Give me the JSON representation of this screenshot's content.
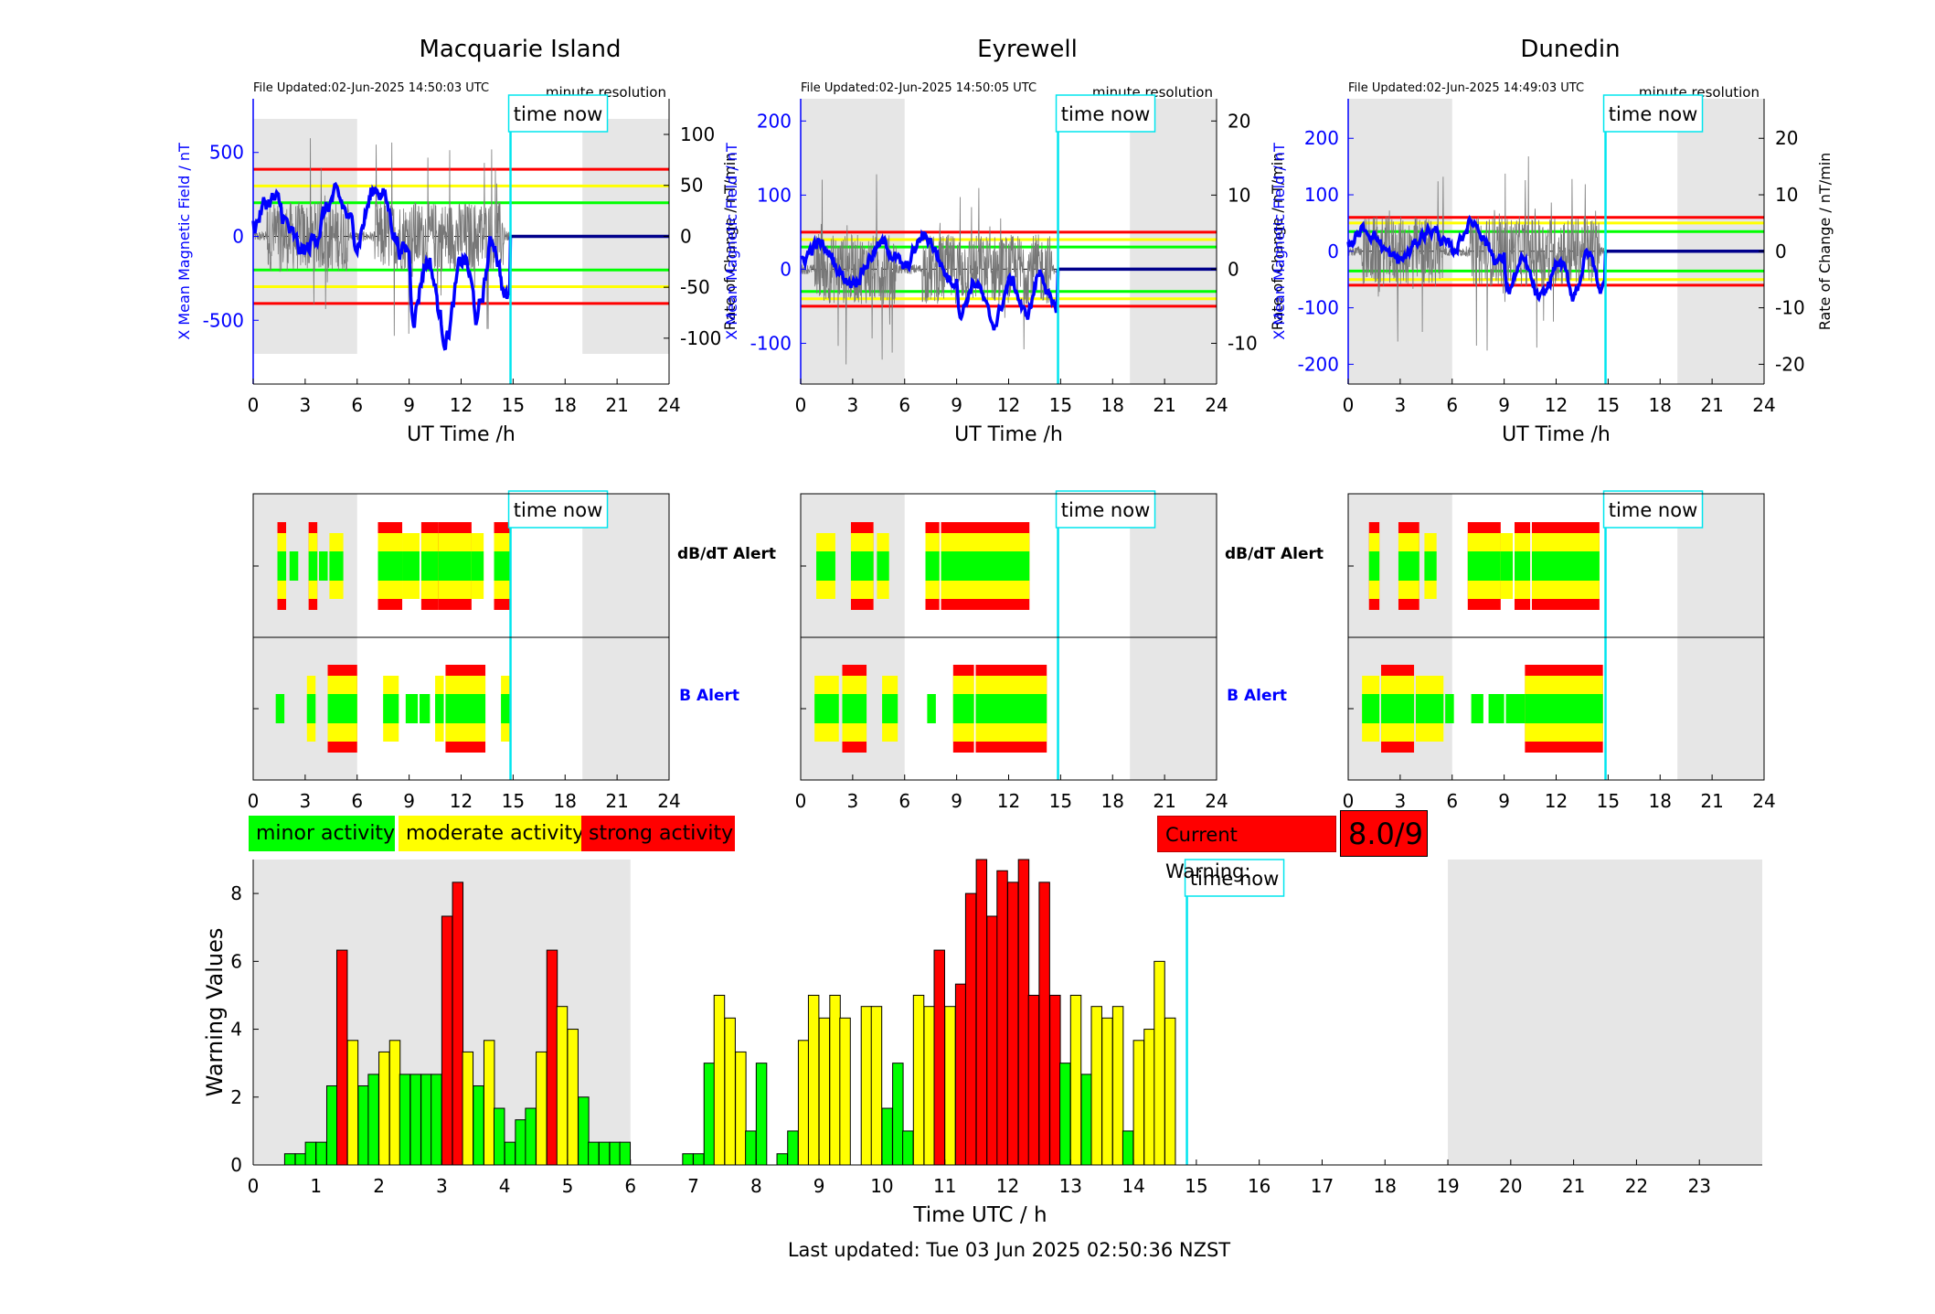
{
  "colors": {
    "minor": "#00ff00",
    "moderate": "#ffff00",
    "strong": "#ff0000",
    "now": "#00e5ee",
    "night": "#e6e6e6",
    "axis_blue": "#0000ff"
  },
  "stations": [
    {
      "name": "Macquarie Island",
      "file_updated": "File Updated:02-Jun-2025 14:50:03 UTC",
      "resolution": "minute resolution",
      "left_label": "X Mean Magnetic Field / nT",
      "right_label": "Rate of Change / nT/min",
      "ylim_left": [
        -880,
        820
      ],
      "yticks_left": [
        "500",
        "0",
        "-500"
      ],
      "yticks_left_vals": [
        500,
        0,
        -500
      ],
      "ylim_right": [
        -145,
        135
      ],
      "yticks_right": [
        "100",
        "50",
        "0",
        "-50",
        "-100"
      ],
      "yticks_right_vals": [
        100,
        50,
        0,
        -50,
        -100
      ],
      "thresholds_left": {
        "minor": 200,
        "moderate": 300,
        "strong": 400
      },
      "night_ranges": [
        [
          0,
          6
        ],
        [
          19,
          24
        ]
      ],
      "night_ylim": [
        -700,
        700
      ],
      "dbdt": [
        [
          1.4,
          1.9,
          "strong"
        ],
        [
          2.1,
          2.6,
          "minor"
        ],
        [
          3.2,
          3.7,
          "strong"
        ],
        [
          3.8,
          4.3,
          "minor"
        ],
        [
          4.4,
          5.2,
          "moderate"
        ],
        [
          7.2,
          8.6,
          "strong"
        ],
        [
          8.6,
          9.6,
          "moderate"
        ],
        [
          9.7,
          10.7,
          "strong"
        ],
        [
          10.7,
          12.6,
          "strong"
        ],
        [
          12.6,
          13.3,
          "moderate"
        ],
        [
          13.9,
          14.8,
          "strong"
        ]
      ],
      "balert": [
        [
          1.3,
          1.8,
          "minor"
        ],
        [
          3.1,
          3.6,
          "moderate"
        ],
        [
          4.3,
          6.0,
          "strong"
        ],
        [
          7.5,
          8.4,
          "moderate"
        ],
        [
          8.8,
          9.5,
          "minor"
        ],
        [
          9.6,
          10.2,
          "minor"
        ],
        [
          10.5,
          11.0,
          "moderate"
        ],
        [
          11.1,
          13.4,
          "strong"
        ],
        [
          14.3,
          14.9,
          "moderate"
        ]
      ]
    },
    {
      "name": "Eyrewell",
      "file_updated": "File Updated:02-Jun-2025 14:50:05 UTC",
      "resolution": "minute resolution",
      "left_label": "X Mean Magnetic Field / nT",
      "right_label": "Rate of Change / nT/min",
      "ylim_left": [
        -155,
        230
      ],
      "yticks_left": [
        "200",
        "100",
        "0",
        "-100"
      ],
      "yticks_left_vals": [
        200,
        100,
        0,
        -100
      ],
      "ylim_right": [
        -15.5,
        23
      ],
      "yticks_right": [
        "20",
        "10",
        "0",
        "-10"
      ],
      "yticks_right_vals": [
        20,
        10,
        0,
        -10
      ],
      "thresholds_left": {
        "minor": 30,
        "moderate": 40,
        "strong": 50
      },
      "night_ranges": [
        [
          0,
          6
        ],
        [
          19,
          24
        ]
      ],
      "night_ylim": [
        -155,
        230
      ],
      "dbdt": [
        [
          0.9,
          2.0,
          "moderate"
        ],
        [
          2.9,
          4.2,
          "strong"
        ],
        [
          4.4,
          5.1,
          "moderate"
        ],
        [
          7.2,
          8.0,
          "strong"
        ],
        [
          8.1,
          13.2,
          "strong"
        ]
      ],
      "balert": [
        [
          0.8,
          2.2,
          "moderate"
        ],
        [
          2.4,
          3.8,
          "strong"
        ],
        [
          4.7,
          5.6,
          "moderate"
        ],
        [
          7.3,
          7.8,
          "minor"
        ],
        [
          8.8,
          10.0,
          "strong"
        ],
        [
          10.1,
          14.2,
          "strong"
        ]
      ]
    },
    {
      "name": "Dunedin",
      "file_updated": "File Updated:02-Jun-2025 14:49:03 UTC",
      "resolution": "minute resolution",
      "left_label": "X Mean Magnetic Field / nT",
      "right_label": "Rate of Change / nT/min",
      "ylim_left": [
        -235,
        270
      ],
      "yticks_left": [
        "200",
        "100",
        "0",
        "-100",
        "-200"
      ],
      "yticks_left_vals": [
        200,
        100,
        0,
        -100,
        -200
      ],
      "ylim_right": [
        -23.5,
        27
      ],
      "yticks_right": [
        "20",
        "10",
        "0",
        "-10",
        "-20"
      ],
      "yticks_right_vals": [
        20,
        10,
        0,
        -10,
        -20
      ],
      "thresholds_left": {
        "minor": 35,
        "moderate": 50,
        "strong": 60
      },
      "night_ranges": [
        [
          0,
          6
        ],
        [
          19,
          24
        ]
      ],
      "night_ylim": [
        -235,
        270
      ],
      "dbdt": [
        [
          1.2,
          1.8,
          "strong"
        ],
        [
          2.9,
          4.1,
          "strong"
        ],
        [
          4.4,
          5.1,
          "moderate"
        ],
        [
          6.9,
          8.8,
          "strong"
        ],
        [
          8.8,
          9.5,
          "moderate"
        ],
        [
          9.6,
          10.5,
          "strong"
        ],
        [
          10.6,
          14.5,
          "strong"
        ]
      ],
      "balert": [
        [
          0.8,
          1.8,
          "moderate"
        ],
        [
          1.9,
          3.8,
          "strong"
        ],
        [
          3.9,
          5.5,
          "moderate"
        ],
        [
          5.6,
          6.1,
          "minor"
        ],
        [
          7.1,
          7.8,
          "minor"
        ],
        [
          8.1,
          9.0,
          "minor"
        ],
        [
          9.1,
          10.2,
          "minor"
        ],
        [
          10.2,
          14.7,
          "strong"
        ]
      ]
    }
  ],
  "now_hour": 14.85,
  "time_now_label": "time now",
  "xlabel_top": "UT Time /h",
  "xticks_top": [
    "0",
    "3",
    "6",
    "9",
    "12",
    "15",
    "18",
    "21",
    "24"
  ],
  "alert_labels": {
    "dbdt": "dB/dT Alert",
    "b": "B Alert"
  },
  "legend": {
    "minor": "minor activity",
    "moderate": "moderate activity",
    "strong": "strong activity"
  },
  "current_warning_label": "Current Warning:",
  "current_warning_value": "8.0/9",
  "footer": "Last updated: Tue 03 Jun 2025 02:50:36 NZST",
  "chart_data": {
    "type": "bar",
    "title": "",
    "xlabel": "Time UTC / h",
    "ylabel": "Warning Values",
    "xlim": [
      0,
      24
    ],
    "ylim": [
      0,
      9
    ],
    "xticks": [
      "0",
      "1",
      "2",
      "3",
      "4",
      "5",
      "6",
      "7",
      "8",
      "9",
      "10",
      "11",
      "12",
      "13",
      "14",
      "15",
      "16",
      "17",
      "18",
      "19",
      "20",
      "21",
      "22",
      "23"
    ],
    "yticks": [
      "0",
      "2",
      "4",
      "6",
      "8"
    ],
    "bar_width_h": 0.1667,
    "night_ranges": [
      [
        0,
        6
      ],
      [
        19,
        24
      ]
    ],
    "x": [
      0.5,
      0.67,
      0.83,
      1.0,
      1.17,
      1.33,
      1.5,
      1.67,
      1.83,
      2.0,
      2.17,
      2.33,
      2.5,
      2.67,
      2.83,
      3.0,
      3.17,
      3.33,
      3.5,
      3.67,
      3.83,
      4.0,
      4.17,
      4.33,
      4.5,
      4.67,
      4.83,
      5.0,
      5.17,
      5.33,
      5.5,
      5.67,
      5.83,
      6.0,
      6.17,
      6.83,
      7.0,
      7.17,
      7.33,
      7.5,
      7.67,
      7.83,
      8.0,
      8.17,
      8.33,
      8.5,
      8.67,
      8.83,
      9.0,
      9.17,
      9.33,
      9.5,
      9.67,
      9.83,
      10.0,
      10.17,
      10.33,
      10.5,
      10.67,
      10.83,
      11.0,
      11.17,
      11.33,
      11.5,
      11.67,
      11.83,
      12.0,
      12.17,
      12.33,
      12.5,
      12.67,
      12.83,
      13.0,
      13.17,
      13.33,
      13.5,
      13.67,
      13.83,
      14.0,
      14.17,
      14.33,
      14.5,
      14.67
    ],
    "values": [
      0.33,
      0.33,
      0.67,
      0.67,
      2.33,
      6.33,
      3.67,
      2.33,
      2.67,
      3.33,
      3.67,
      2.67,
      2.67,
      2.67,
      2.67,
      7.33,
      8.33,
      3.33,
      2.33,
      3.67,
      1.67,
      0.67,
      1.33,
      1.67,
      3.33,
      6.33,
      4.67,
      4.0,
      2.0,
      0.67,
      0.67,
      0.67,
      0.67,
      0,
      0,
      0.33,
      0.33,
      3.0,
      5.0,
      4.33,
      3.33,
      1.0,
      3.0,
      0,
      0.33,
      1.0,
      3.67,
      5.0,
      4.33,
      5.0,
      4.33,
      0,
      4.67,
      4.67,
      1.67,
      3.0,
      1.0,
      5.0,
      4.67,
      6.33,
      4.67,
      5.33,
      8.0,
      9.0,
      7.33,
      8.67,
      8.33,
      9.0,
      5.0,
      8.33,
      5.0,
      3.0,
      5.0,
      2.67,
      4.67,
      4.33,
      4.67,
      1.0,
      3.67,
      4.0,
      6.0,
      4.33,
      0
    ],
    "levels": [
      "minor",
      "minor",
      "minor",
      "minor",
      "minor",
      "strong",
      "moderate",
      "minor",
      "minor",
      "moderate",
      "moderate",
      "minor",
      "minor",
      "minor",
      "minor",
      "strong",
      "strong",
      "moderate",
      "minor",
      "moderate",
      "minor",
      "minor",
      "minor",
      "minor",
      "moderate",
      "strong",
      "moderate",
      "moderate",
      "minor",
      "minor",
      "minor",
      "minor",
      "minor",
      "minor",
      "minor",
      "minor",
      "minor",
      "minor",
      "moderate",
      "moderate",
      "moderate",
      "minor",
      "minor",
      "minor",
      "minor",
      "minor",
      "moderate",
      "moderate",
      "moderate",
      "moderate",
      "moderate",
      "minor",
      "moderate",
      "moderate",
      "minor",
      "minor",
      "minor",
      "moderate",
      "moderate",
      "strong",
      "moderate",
      "strong",
      "strong",
      "strong",
      "strong",
      "strong",
      "strong",
      "strong",
      "strong",
      "strong",
      "strong",
      "minor",
      "moderate",
      "minor",
      "moderate",
      "moderate",
      "moderate",
      "minor",
      "moderate",
      "moderate",
      "moderate",
      "moderate",
      "minor"
    ]
  }
}
